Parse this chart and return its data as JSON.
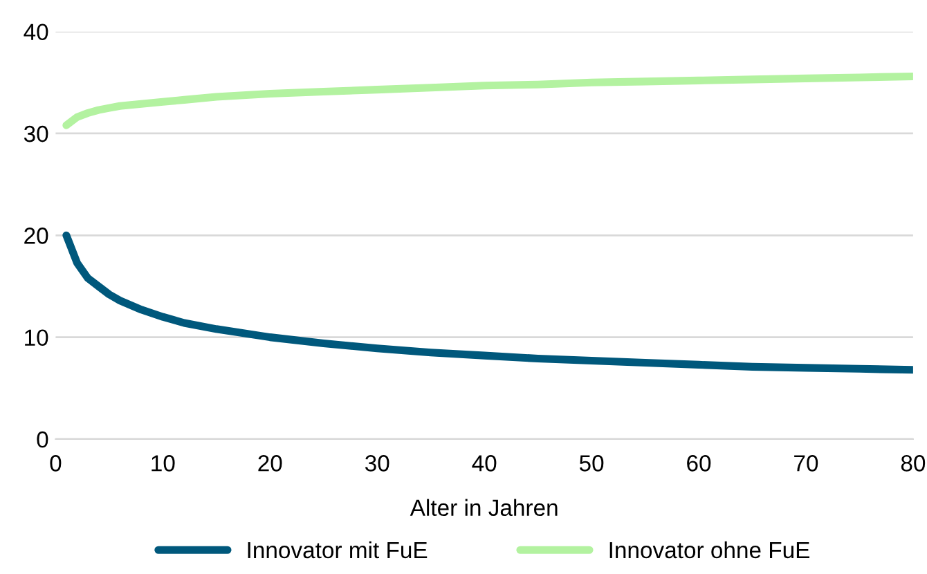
{
  "chart_data": {
    "type": "line",
    "xlabel": "Alter in Jahren",
    "xlim": [
      0,
      80
    ],
    "xticks": [
      0,
      10,
      20,
      30,
      40,
      50,
      60,
      70,
      80
    ],
    "ylim": [
      0,
      40
    ],
    "yticks": [
      0,
      10,
      20,
      30,
      40
    ],
    "grid": "y",
    "legend": "bottom",
    "marker": "none",
    "line_style": "solid",
    "series": [
      {
        "name": "Innovator mit FuE",
        "color": "#00587c",
        "x": [
          1,
          2,
          3,
          4,
          5,
          6,
          8,
          10,
          12,
          15,
          20,
          25,
          30,
          35,
          40,
          45,
          50,
          55,
          60,
          65,
          70,
          75,
          80
        ],
        "values": [
          20,
          17.3,
          15.8,
          15,
          14.2,
          13.6,
          12.7,
          12,
          11.4,
          10.8,
          10,
          9.4,
          8.9,
          8.5,
          8.2,
          7.9,
          7.7,
          7.5,
          7.3,
          7.1,
          7,
          6.9,
          6.8
        ]
      },
      {
        "name": "Innovator ohne FuE",
        "color": "#b3f2a0",
        "x": [
          1,
          2,
          3,
          4,
          5,
          6,
          8,
          10,
          12,
          15,
          20,
          25,
          30,
          35,
          40,
          45,
          50,
          55,
          60,
          65,
          70,
          75,
          80
        ],
        "values": [
          30.8,
          31.6,
          32,
          32.3,
          32.5,
          32.7,
          32.9,
          33.1,
          33.3,
          33.6,
          33.9,
          34.1,
          34.3,
          34.5,
          34.7,
          34.8,
          35,
          35.1,
          35.2,
          35.3,
          35.4,
          35.5,
          35.6
        ]
      }
    ]
  }
}
